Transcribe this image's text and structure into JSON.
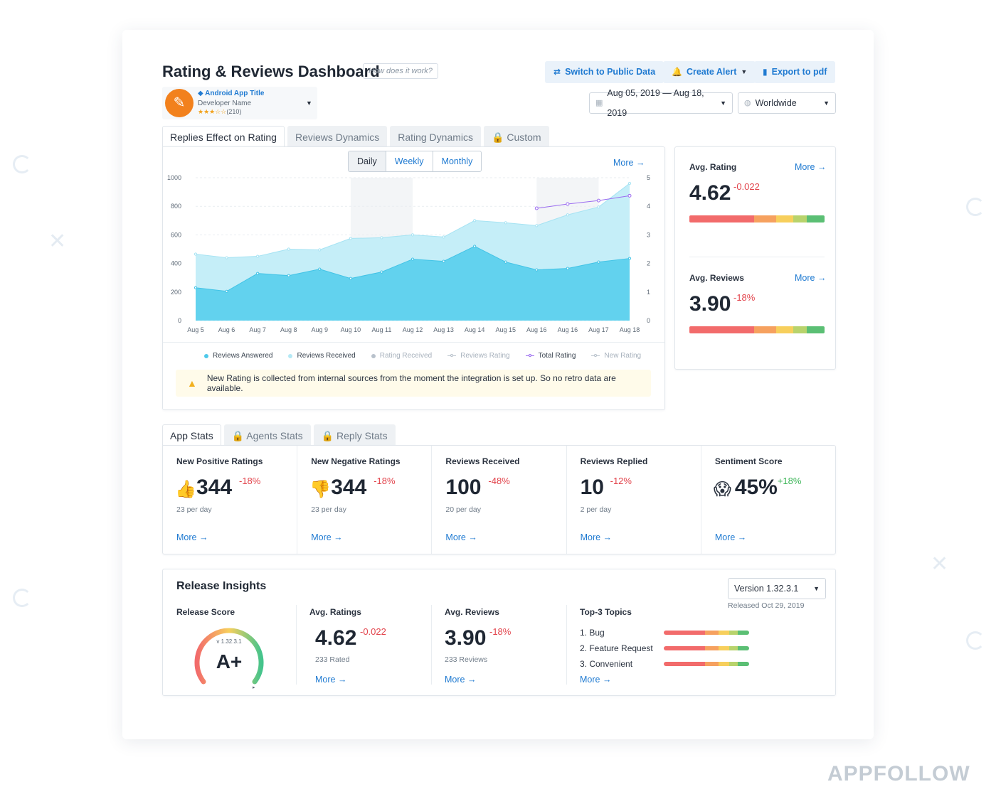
{
  "header": {
    "title": "Rating & Reviews Dashboard",
    "help": "How does it work?",
    "buttons": {
      "switch": "Switch to Public Data",
      "alert": "Create Alert",
      "export": "Export to pdf"
    }
  },
  "app": {
    "title": "Android App Title",
    "developer": "Developer Name",
    "stars": "★★★☆☆",
    "rating_count": "(210)"
  },
  "filters": {
    "date_range": "Aug 05, 2019 — Aug 18, 2019",
    "region": "Worldwide"
  },
  "chart_tabs": [
    "Replies Effect on Rating",
    "Reviews Dynamics",
    "Rating Dynamics",
    "Custom"
  ],
  "period": {
    "daily": "Daily",
    "weekly": "Weekly",
    "monthly": "Monthly"
  },
  "more": "More →",
  "chart_data": {
    "type": "area",
    "x": [
      "Aug 5",
      "Aug 6",
      "Aug 7",
      "Aug 8",
      "Aug 9",
      "Aug 10",
      "Aug 11",
      "Aug 12",
      "Aug 13",
      "Aug 14",
      "Aug 15",
      "Aug 16",
      "Aug 16",
      "Aug 17",
      "Aug 18"
    ],
    "x_ticks": [
      "Aug 5",
      "Aug 6",
      "Aug 7",
      "Aug 8",
      "Aug 9",
      "Aug 10",
      "Aug 11",
      "Aug 12",
      "Aug 13",
      "Aug 14",
      "Aug 15",
      "Aug 16",
      "Aug 16",
      "Aug 17",
      "Aug 18"
    ],
    "y_left_ticks": [
      "0",
      "200",
      "400",
      "600",
      "800",
      "1000"
    ],
    "y_right_ticks": [
      "0",
      "1",
      "2",
      "3",
      "4",
      "5"
    ],
    "ylim_left": [
      0,
      1000
    ],
    "ylim_right": [
      0,
      5
    ],
    "series": [
      {
        "name": "Reviews Received",
        "axis": "left",
        "values": [
          465,
          440,
          450,
          500,
          495,
          575,
          580,
          600,
          585,
          700,
          685,
          665,
          740,
          795,
          960
        ]
      },
      {
        "name": "Reviews Answered",
        "axis": "left",
        "values": [
          230,
          205,
          330,
          315,
          360,
          295,
          340,
          430,
          415,
          520,
          410,
          355,
          365,
          410,
          435
        ]
      },
      {
        "name": "Total Rating",
        "axis": "right",
        "values": [
          null,
          null,
          null,
          null,
          null,
          null,
          null,
          null,
          null,
          null,
          null,
          3.93,
          4.08,
          4.2,
          4.37
        ]
      }
    ],
    "legend": [
      {
        "name": "Reviews Answered",
        "marker": "dot",
        "color": "#4ec9ea",
        "faded": false
      },
      {
        "name": "Reviews Received",
        "marker": "dot",
        "color": "#b5e9f5",
        "faded": false
      },
      {
        "name": "Rating Received",
        "marker": "dot",
        "color": "#b8c1cb",
        "faded": true
      },
      {
        "name": "Reviews Rating",
        "marker": "line",
        "color": "#b8c1cb",
        "faded": true
      },
      {
        "name": "Total Rating",
        "marker": "line",
        "color": "#9b6cf0",
        "faded": false
      },
      {
        "name": "New Rating",
        "marker": "line",
        "color": "#b8c1cb",
        "faded": true
      }
    ],
    "colors": {
      "received": "#c5eef8",
      "answered": "#62d2ee",
      "total": "#9b6cf0"
    },
    "grid": true
  },
  "notice": "New Rating is collected from internal sources from the moment the integration is set up. So no retro data are available.",
  "side": {
    "avg_rating": {
      "label": "Avg. Rating",
      "value": "4.62",
      "delta": "-0.022"
    },
    "avg_reviews": {
      "label": "Avg. Reviews",
      "value": "3.90",
      "delta": "-18%"
    },
    "bar_colors": [
      "#f26b6b",
      "#f26b6b",
      "#f6a15f",
      "#f7cf5c",
      "#b8d36c",
      "#5bbf74"
    ],
    "bar_fractions": [
      0.28,
      0.2,
      0.16,
      0.13,
      0.1,
      0.13
    ]
  },
  "stats_tabs": [
    "App Stats",
    "Agents Stats",
    "Reply Stats"
  ],
  "stats": [
    {
      "label": "New Positive Ratings",
      "icon": "👍",
      "value": "344",
      "delta": "-18%",
      "sub": "23 per day",
      "positive": false
    },
    {
      "label": "New Negative Ratings",
      "icon": "👎",
      "value": "344",
      "delta": "-18%",
      "sub": "23 per day",
      "positive": false
    },
    {
      "label": "Reviews Received",
      "icon": "",
      "value": "100",
      "delta": "-48%",
      "sub": "20 per day",
      "positive": false
    },
    {
      "label": "Reviews Replied",
      "icon": "",
      "value": "10",
      "delta": "-12%",
      "sub": "2 per day",
      "positive": false
    },
    {
      "label": "Sentiment Score",
      "icon": "😱",
      "value": "45%",
      "delta": "+18%",
      "sub": "",
      "positive": true
    }
  ],
  "release": {
    "title": "Release Insights",
    "version": "Version 1.32.3.1",
    "released": "Released Oct 29, 2019",
    "score_label": "Release Score",
    "score_version": "v 1.32.3.1",
    "grade": "A+",
    "avg_ratings": {
      "label": "Avg. Ratings",
      "value": "4.62",
      "delta": "-0.022",
      "sub": "233 Rated"
    },
    "avg_reviews": {
      "label": "Avg. Reviews",
      "value": "3.90",
      "delta": "-18%",
      "sub": "233 Reviews"
    },
    "topics_label": "Top-3 Topics",
    "topics": [
      "Bug",
      "Feature Request",
      "Convenient"
    ]
  },
  "brand": "APPFOLLOW"
}
